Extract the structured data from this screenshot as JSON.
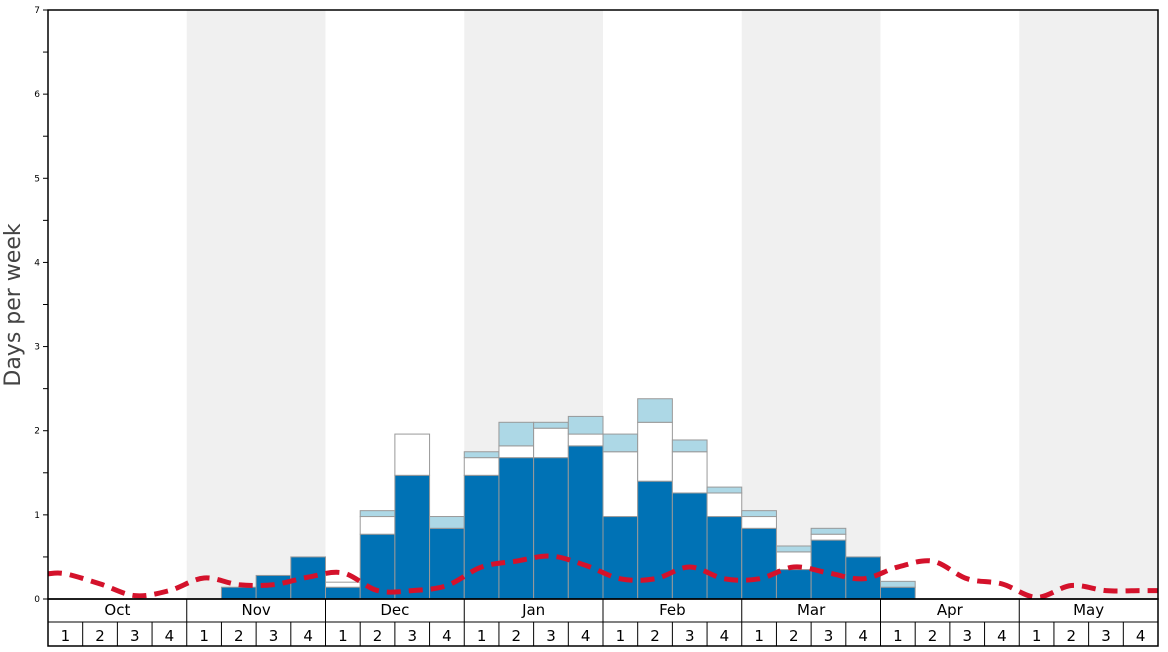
{
  "chart_data": {
    "type": "bar",
    "stacked": true,
    "ylabel": "Days per week",
    "ylim": [
      0,
      7
    ],
    "y_ticks": [
      "0",
      "1",
      "2",
      "3",
      "4",
      "5",
      "6",
      "7"
    ],
    "months": [
      "Oct",
      "Nov",
      "Dec",
      "Jan",
      "Feb",
      "Mar",
      "Apr",
      "May"
    ],
    "weeks": [
      "1",
      "2",
      "3",
      "4"
    ],
    "shaded_months": [
      "Nov",
      "Jan",
      "Mar",
      "May"
    ],
    "colors": {
      "series_1": "#0072b5",
      "series_2": "#ffffff",
      "series_3": "#add8e6",
      "line": "#d4122b",
      "shade": "#f0f0f0",
      "bar_outline": "#999999"
    },
    "series": [
      {
        "color": "#0072b5",
        "values": [
          0,
          0,
          0,
          0,
          0,
          0.14,
          0.28,
          0.5,
          0.14,
          0.77,
          1.47,
          0.84,
          1.47,
          1.68,
          1.68,
          1.82,
          0.98,
          1.4,
          1.26,
          0.98,
          0.84,
          0.35,
          0.7,
          0.5,
          0.14,
          0,
          0,
          0,
          0,
          0,
          0,
          0
        ]
      },
      {
        "color": "#ffffff",
        "values": [
          0,
          0,
          0,
          0,
          0,
          0,
          0,
          0,
          0.06,
          0.21,
          0.49,
          0,
          0.21,
          0.14,
          0.35,
          0.14,
          0.77,
          0.7,
          0.49,
          0.28,
          0.14,
          0.21,
          0.07,
          0,
          0,
          0,
          0,
          0,
          0,
          0,
          0,
          0
        ]
      },
      {
        "color": "#add8e6",
        "values": [
          0,
          0,
          0,
          0,
          0,
          0,
          0,
          0,
          0,
          0.07,
          0,
          0.14,
          0.07,
          0.28,
          0.07,
          0.21,
          0.21,
          0.28,
          0.14,
          0.07,
          0.07,
          0.07,
          0.07,
          0,
          0.07,
          0,
          0,
          0,
          0,
          0,
          0,
          0
        ]
      },
      {
        "type": "line",
        "style": "dashed",
        "color": "#d4122b",
        "values": [
          0.3,
          0.18,
          0.04,
          0.1,
          0.25,
          0.17,
          0.17,
          0.26,
          0.31,
          0.1,
          0.1,
          0.16,
          0.38,
          0.45,
          0.51,
          0.4,
          0.24,
          0.24,
          0.38,
          0.24,
          0.24,
          0.38,
          0.31,
          0.24,
          0.38,
          0.45,
          0.24,
          0.18,
          0.02,
          0.16,
          0.1,
          0.1
        ]
      }
    ]
  }
}
